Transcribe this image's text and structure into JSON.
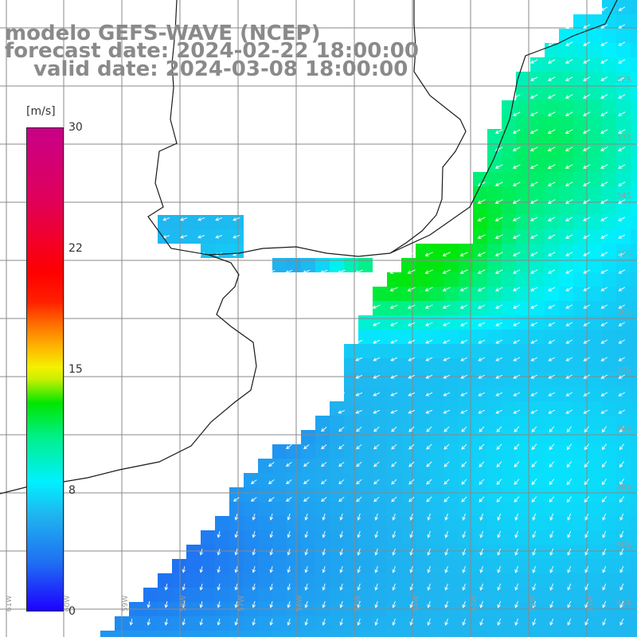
{
  "title": {
    "line1": "modelo GEFS-WAVE (NCEP)",
    "line2": "forecast date: 2024-02-22 18:00:00",
    "line3": "valid date: 2024-03-08 18:00:00"
  },
  "colorbar": {
    "unit": "[m/s]",
    "ticks": [
      "30",
      "22",
      "15",
      "8",
      "0"
    ],
    "range": [
      0,
      30
    ],
    "colors": [
      "#1e00ff",
      "#1fb6f0",
      "#00f0ff",
      "#00e600",
      "#f5f000",
      "#ff6400",
      "#ff0000",
      "#c80088"
    ]
  },
  "map": {
    "lat_labels": [
      "32S",
      "33S",
      "34S",
      "35S",
      "36S",
      "37S",
      "38S",
      "39S",
      "40S",
      "41S"
    ],
    "lon_labels": [
      "61W",
      "60W",
      "59W",
      "58W",
      "57W",
      "56W",
      "55W",
      "54W",
      "53W",
      "52W",
      "51W"
    ],
    "land_color": "#ffffff",
    "grid_color": "#888888",
    "arrow_color": "#ffffff"
  }
}
